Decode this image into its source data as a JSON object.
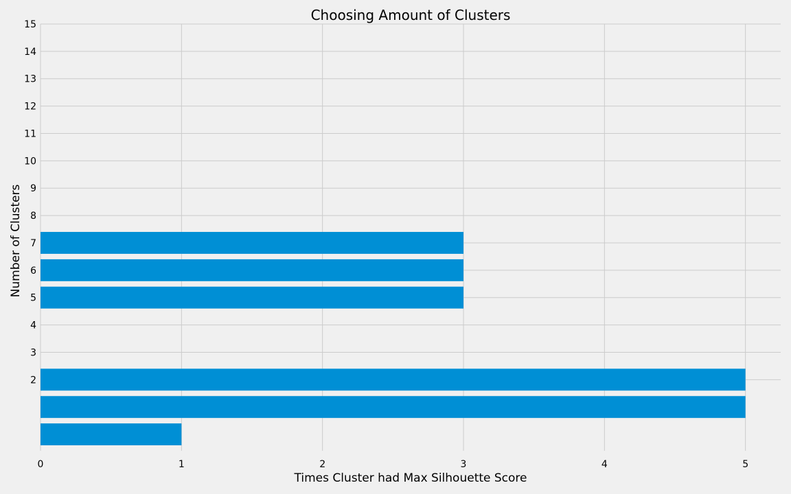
{
  "chart_data": {
    "type": "bar",
    "orientation": "horizontal",
    "title": "Choosing Amount of Clusters",
    "xlabel": "Times Cluster had Max Silhouette Score",
    "ylabel": "Number of Clusters",
    "bars": [
      {
        "y": 0,
        "value": 1
      },
      {
        "y": 1,
        "value": 5
      },
      {
        "y": 2,
        "value": 5
      },
      {
        "y": 5,
        "value": 3
      },
      {
        "y": 6,
        "value": 3
      },
      {
        "y": 7,
        "value": 3
      }
    ],
    "x_ticks": [
      "0",
      "1",
      "2",
      "3",
      "4",
      "5"
    ],
    "y_ticks": [
      "2",
      "3",
      "4",
      "5",
      "6",
      "7",
      "8",
      "9",
      "10",
      "11",
      "12",
      "13",
      "14",
      "15"
    ],
    "xlim": [
      0,
      5.25
    ],
    "ylim": [
      -0.6,
      15
    ],
    "grid": true,
    "bar_color": "#008fd5",
    "background_color": "#f0f0f0",
    "grid_color": "#cbcbcb"
  }
}
